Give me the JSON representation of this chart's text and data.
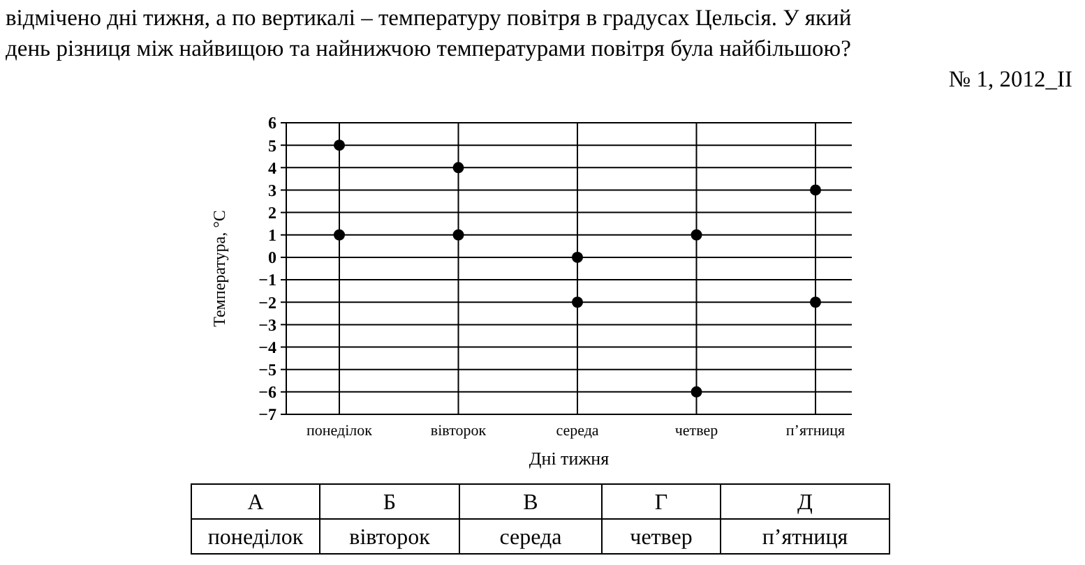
{
  "chart_data": {
    "type": "scatter",
    "xlabel": "Дні тижня",
    "ylabel": "Температура, °С",
    "categories": [
      "понеділок",
      "вівторок",
      "середа",
      "четвер",
      "п’ятниця"
    ],
    "series": [
      {
        "color": "#000000",
        "values": [
          5,
          4,
          0,
          1,
          3
        ]
      },
      {
        "color": "#000000",
        "values": [
          1,
          1,
          -2,
          -6,
          -2
        ]
      }
    ],
    "ylim": [
      -7,
      6
    ],
    "yticks": [
      -7,
      -6,
      -5,
      -4,
      -3,
      -2,
      -1,
      0,
      1,
      2,
      3,
      4,
      5,
      6
    ],
    "grid": true,
    "marker": "circle",
    "annotations": [
      "відмічено дні тижня, а по вертикалі – температуру повітря в градусах Цельсія. У який",
      "день різниця між найвищою та найнижчою температурами повітря була найбільшою?",
      "№ 1, 2012_II",
      "А",
      "Б",
      "В",
      "Г",
      "Д",
      "понеділок",
      "вівторок",
      "середа",
      "четвер",
      "п’ятниця"
    ]
  }
}
